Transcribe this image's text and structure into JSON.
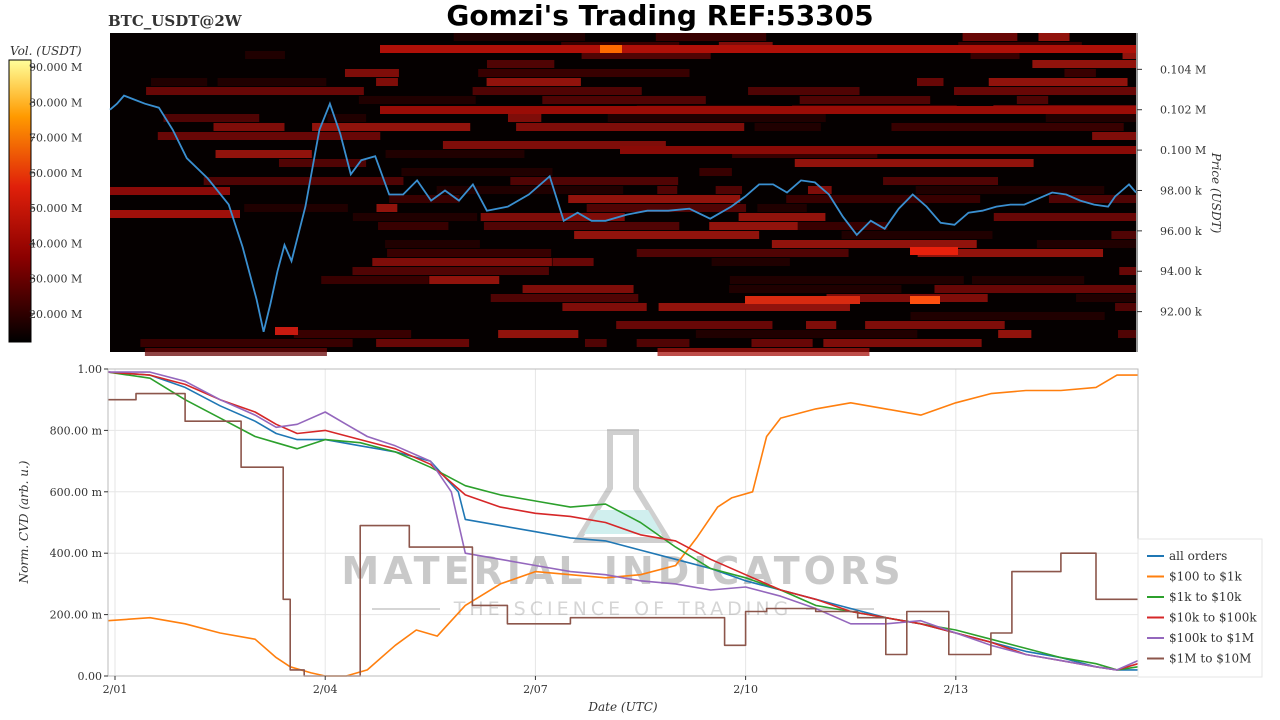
{
  "header": {
    "symbol": "BTC_USDT@2W",
    "title": "Gomzi's Trading REF:53305"
  },
  "watermark": {
    "line1": "MATERIAL INDICATORS",
    "line2": "THE SCIENCE OF TRADING"
  },
  "colors": {
    "heatmap_bg": "#050000",
    "price_line": "#3a8fd0",
    "all_orders": "#1f77b4",
    "usd100_1k": "#ff7f0e",
    "usd1k_10k": "#2ca02c",
    "usd10k_100k": "#d62728",
    "usd100k_1m": "#9467bd",
    "usd1m_10m": "#8c564b"
  },
  "chart_data": [
    {
      "type": "heatmap",
      "colorbar_label": "Vol. (USDT)",
      "colorbar_ticks": [
        "20.000 M",
        "30.000 M",
        "40.000 M",
        "50.000 M",
        "60.000 M",
        "70.000 M",
        "80.000 M",
        "90.000 M"
      ],
      "colorbar_range": [
        12,
        92
      ],
      "ylabel": "Price (USDT)",
      "y_ticks": [
        "92.00 k",
        "94.00 k",
        "96.00 k",
        "98.00 k",
        "0.100 M",
        "0.102 M",
        "0.104 M"
      ],
      "y_tick_values": [
        92000,
        94000,
        96000,
        98000,
        100000,
        102000,
        104000
      ],
      "ylim": [
        90000,
        105800
      ],
      "xlim": [
        0.9,
        15.6
      ],
      "price_series": {
        "x": [
          0.9,
          1.0,
          1.1,
          1.25,
          1.4,
          1.6,
          1.8,
          2.0,
          2.3,
          2.6,
          2.8,
          3.0,
          3.1,
          3.2,
          3.3,
          3.4,
          3.5,
          3.7,
          3.9,
          4.05,
          4.2,
          4.35,
          4.5,
          4.7,
          4.9,
          5.1,
          5.3,
          5.5,
          5.7,
          5.9,
          6.1,
          6.3,
          6.6,
          6.9,
          7.2,
          7.4,
          7.6,
          7.8,
          8.0,
          8.3,
          8.6,
          8.9,
          9.2,
          9.5,
          9.8,
          10.0,
          10.2,
          10.4,
          10.6,
          10.8,
          11.0,
          11.2,
          11.4,
          11.6,
          11.8,
          12.0,
          12.2,
          12.4,
          12.6,
          12.8,
          13.0,
          13.2,
          13.4,
          13.6,
          13.8,
          14.0,
          14.2,
          14.4,
          14.6,
          14.8,
          15.0,
          15.2,
          15.3,
          15.4,
          15.5,
          15.6
        ],
        "y": [
          102000,
          102300,
          102700,
          102500,
          102300,
          102100,
          101000,
          99600,
          98600,
          97300,
          95200,
          92600,
          91000,
          92400,
          94000,
          95300,
          94500,
          97200,
          101000,
          102300,
          100800,
          98800,
          99500,
          99700,
          97800,
          97800,
          98500,
          97500,
          98000,
          97500,
          98300,
          97000,
          97200,
          97800,
          98700,
          96500,
          96900,
          96500,
          96500,
          96800,
          97000,
          97000,
          97100,
          96600,
          97200,
          97700,
          98300,
          98300,
          97900,
          98500,
          98400,
          97800,
          96700,
          95800,
          96500,
          96100,
          97100,
          97800,
          97200,
          96400,
          96300,
          96900,
          97000,
          97200,
          97300,
          97300,
          97600,
          97900,
          97800,
          97500,
          97300,
          97200,
          97700,
          98000,
          98300,
          97900
        ]
      }
    },
    {
      "type": "line",
      "ylabel": "Norm. CVD (arb. u.)",
      "xlabel": "Date (UTC)",
      "ylim": [
        0,
        1
      ],
      "xlim": [
        0.9,
        15.6
      ],
      "y_ticks": [
        "0.00",
        "200.00 m",
        "400.00 m",
        "600.00 m",
        "800.00 m",
        "1.00"
      ],
      "y_tick_values": [
        0,
        0.2,
        0.4,
        0.6,
        0.8,
        1.0
      ],
      "x_ticks": [
        "2/01",
        "2/04",
        "2/07",
        "2/10",
        "2/13"
      ],
      "x_tick_values": [
        1,
        4,
        7,
        10,
        13
      ],
      "series": [
        {
          "name": "all orders",
          "color": "#1f77b4",
          "x": [
            0.9,
            1.5,
            2.0,
            2.5,
            3.0,
            3.3,
            3.6,
            4.0,
            4.5,
            5.0,
            5.5,
            5.9,
            6.0,
            6.5,
            7.0,
            7.5,
            8.0,
            8.5,
            9.0,
            9.5,
            10.0,
            10.5,
            11.0,
            11.5,
            12.0,
            12.5,
            13.0,
            13.5,
            14.0,
            14.5,
            15.0,
            15.3,
            15.6
          ],
          "y": [
            0.99,
            0.98,
            0.94,
            0.88,
            0.83,
            0.79,
            0.77,
            0.77,
            0.75,
            0.73,
            0.7,
            0.6,
            0.51,
            0.49,
            0.47,
            0.45,
            0.44,
            0.41,
            0.38,
            0.35,
            0.31,
            0.28,
            0.25,
            0.22,
            0.19,
            0.17,
            0.14,
            0.11,
            0.08,
            0.06,
            0.03,
            0.02,
            0.02
          ]
        },
        {
          "name": "$100 to $1k",
          "color": "#ff7f0e",
          "x": [
            0.9,
            1.5,
            2.0,
            2.5,
            3.0,
            3.3,
            3.5,
            3.8,
            4.0,
            4.3,
            4.6,
            5.0,
            5.3,
            5.6,
            6.0,
            6.5,
            7.0,
            7.5,
            8.0,
            8.5,
            9.0,
            9.3,
            9.6,
            9.8,
            10.1,
            10.3,
            10.5,
            11.0,
            11.5,
            12.0,
            12.5,
            13.0,
            13.5,
            14.0,
            14.5,
            15.0,
            15.3,
            15.6
          ],
          "y": [
            0.18,
            0.19,
            0.17,
            0.14,
            0.12,
            0.06,
            0.03,
            0.01,
            0.0,
            0.0,
            0.02,
            0.1,
            0.15,
            0.13,
            0.23,
            0.3,
            0.34,
            0.33,
            0.32,
            0.33,
            0.36,
            0.45,
            0.55,
            0.58,
            0.6,
            0.78,
            0.84,
            0.87,
            0.89,
            0.87,
            0.85,
            0.89,
            0.92,
            0.93,
            0.93,
            0.94,
            0.98,
            0.98
          ]
        },
        {
          "name": "$1k to $10k",
          "color": "#2ca02c",
          "x": [
            0.9,
            1.5,
            2.0,
            2.5,
            3.0,
            3.3,
            3.6,
            4.0,
            4.5,
            5.0,
            5.5,
            6.0,
            6.5,
            7.0,
            7.5,
            8.0,
            8.5,
            9.0,
            9.5,
            10.0,
            10.5,
            11.0,
            11.5,
            12.0,
            12.5,
            13.0,
            13.5,
            14.0,
            14.5,
            15.0,
            15.3,
            15.6
          ],
          "y": [
            0.99,
            0.97,
            0.9,
            0.84,
            0.78,
            0.76,
            0.74,
            0.77,
            0.76,
            0.73,
            0.68,
            0.62,
            0.59,
            0.57,
            0.55,
            0.56,
            0.5,
            0.42,
            0.35,
            0.32,
            0.28,
            0.23,
            0.21,
            0.19,
            0.17,
            0.15,
            0.12,
            0.09,
            0.06,
            0.04,
            0.02,
            0.03
          ]
        },
        {
          "name": "$10k to $100k",
          "color": "#d62728",
          "x": [
            0.9,
            1.5,
            2.0,
            2.5,
            3.0,
            3.3,
            3.6,
            4.0,
            4.5,
            5.0,
            5.5,
            6.0,
            6.5,
            7.0,
            7.5,
            8.0,
            8.5,
            9.0,
            9.5,
            10.0,
            10.5,
            11.0,
            11.5,
            12.0,
            12.5,
            13.0,
            13.5,
            14.0,
            14.5,
            15.0,
            15.3,
            15.6
          ],
          "y": [
            0.99,
            0.98,
            0.95,
            0.9,
            0.86,
            0.82,
            0.79,
            0.8,
            0.77,
            0.74,
            0.69,
            0.59,
            0.55,
            0.53,
            0.52,
            0.5,
            0.46,
            0.44,
            0.38,
            0.33,
            0.28,
            0.25,
            0.21,
            0.19,
            0.17,
            0.14,
            0.11,
            0.07,
            0.05,
            0.03,
            0.02,
            0.04
          ]
        },
        {
          "name": "$100k to $1M",
          "color": "#9467bd",
          "x": [
            0.9,
            1.5,
            2.0,
            2.5,
            3.0,
            3.3,
            3.6,
            4.0,
            4.3,
            4.6,
            5.0,
            5.5,
            5.8,
            6.0,
            6.5,
            7.0,
            7.5,
            8.0,
            8.5,
            9.0,
            9.5,
            10.0,
            10.5,
            11.0,
            11.5,
            12.0,
            12.5,
            13.0,
            13.5,
            14.0,
            14.5,
            15.0,
            15.3,
            15.6
          ],
          "y": [
            0.99,
            0.99,
            0.96,
            0.9,
            0.85,
            0.81,
            0.82,
            0.86,
            0.82,
            0.78,
            0.75,
            0.7,
            0.6,
            0.4,
            0.38,
            0.36,
            0.34,
            0.33,
            0.31,
            0.3,
            0.28,
            0.29,
            0.26,
            0.22,
            0.17,
            0.17,
            0.18,
            0.14,
            0.1,
            0.07,
            0.05,
            0.03,
            0.02,
            0.05
          ]
        },
        {
          "name": "$1M to $10M",
          "color": "#8c564b",
          "step": true,
          "x": [
            0.9,
            1.3,
            2.0,
            2.8,
            3.4,
            3.5,
            3.7,
            3.9,
            4.5,
            5.2,
            6.1,
            6.6,
            7.5,
            8.2,
            8.8,
            9.7,
            10.0,
            10.3,
            11.0,
            11.6,
            12.0,
            12.3,
            12.9,
            13.5,
            13.8,
            14.5,
            15.0,
            15.6
          ],
          "y": [
            0.9,
            0.92,
            0.83,
            0.68,
            0.25,
            0.02,
            0.0,
            0.0,
            0.49,
            0.42,
            0.23,
            0.17,
            0.19,
            0.19,
            0.19,
            0.1,
            0.21,
            0.22,
            0.21,
            0.19,
            0.07,
            0.21,
            0.07,
            0.14,
            0.34,
            0.4,
            0.25,
            0.25
          ]
        }
      ]
    }
  ]
}
